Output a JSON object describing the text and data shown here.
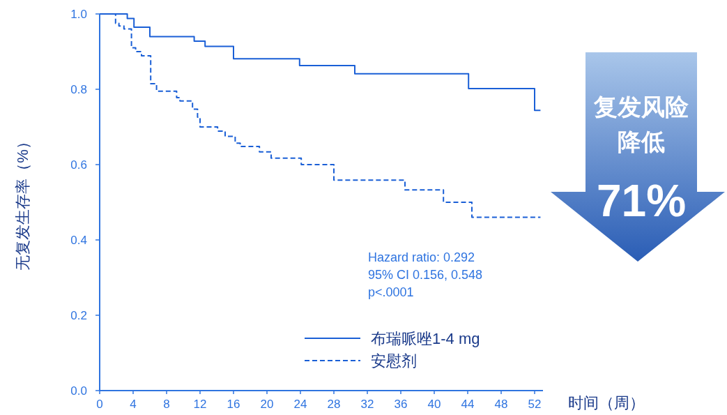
{
  "chart_data": {
    "type": "step",
    "xlabel": "时间（周）",
    "ylabel": "无复发生存率（%）",
    "xlim": [
      0,
      53
    ],
    "xticks": [
      0,
      4,
      8,
      12,
      16,
      20,
      24,
      28,
      32,
      36,
      40,
      44,
      48,
      52
    ],
    "ylim": [
      0,
      1
    ],
    "yticks": [
      {
        "value": 0,
        "label": "0.0"
      },
      {
        "value": 0.2,
        "label": "0.2"
      },
      {
        "value": 0.4,
        "label": "0.4"
      },
      {
        "value": 0.6,
        "label": "0.6"
      },
      {
        "value": 0.8,
        "label": "0.8"
      },
      {
        "value": 1,
        "label": "1.0"
      }
    ],
    "grid": false,
    "legend": "bottom right",
    "marker": "none",
    "series": [
      {
        "name": "布瑞哌唑1-4 mg",
        "color": "#1a5fd6",
        "line_style": "solid",
        "x": [
          0,
          3.3,
          4.1,
          6.0,
          11.3,
          12.6,
          16.0,
          23.9,
          30.5,
          44.1,
          52.0,
          52.7
        ],
        "values": [
          1,
          0.988,
          0.965,
          0.94,
          0.928,
          0.914,
          0.881,
          0.863,
          0.841,
          0.802,
          0.744,
          0.744
        ]
      },
      {
        "name": "安慰剂",
        "color": "#1a5fd6",
        "line_style": "dashed",
        "x": [
          0,
          1.9,
          2.3,
          2.9,
          3.8,
          4.3,
          5.0,
          6.1,
          6.8,
          9.2,
          9.6,
          11.1,
          11.7,
          12.0,
          14.1,
          15.0,
          16.2,
          16.8,
          19.1,
          20.5,
          24.1,
          28.0,
          36.5,
          41.1,
          44.5,
          52.7
        ],
        "values": [
          1,
          0.975,
          0.968,
          0.96,
          0.91,
          0.9,
          0.889,
          0.815,
          0.795,
          0.778,
          0.769,
          0.747,
          0.726,
          0.7,
          0.689,
          0.675,
          0.657,
          0.648,
          0.634,
          0.617,
          0.6,
          0.559,
          0.533,
          0.5,
          0.46,
          0.46
        ]
      }
    ],
    "annotations": [
      "Hazard ratio: 0.292",
      "95% CI 0.156, 0.548",
      "p<.0001",
      "复发风险",
      "降低",
      "71%"
    ]
  }
}
